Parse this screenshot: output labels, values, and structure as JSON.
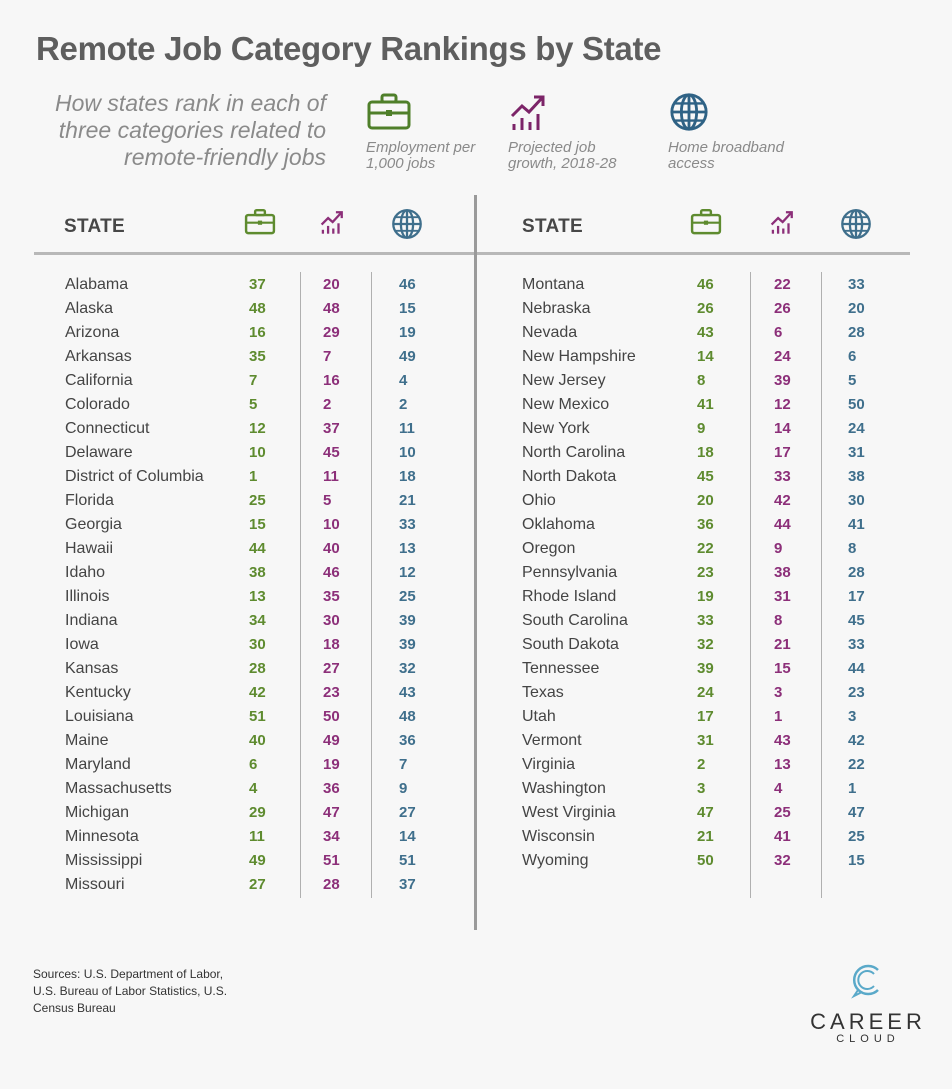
{
  "title": "Remote Job Category Rankings by State",
  "subtitle": "How states rank in each of three categories related to remote-friendly jobs",
  "legend": [
    {
      "icon": "briefcase-icon",
      "label": "Employment per 1,000 jobs",
      "color": "#4f7f2a"
    },
    {
      "icon": "growth-chart-icon",
      "label": "Projected job growth, 2018-28",
      "color": "#7c2468"
    },
    {
      "icon": "globe-icon",
      "label": "Home broadband access",
      "color": "#2f6285"
    }
  ],
  "header": {
    "state_label": "STATE"
  },
  "sources": "Sources: U.S. Department of Labor, U.S. Bureau of Labor Statistics, U.S. Census Bureau",
  "logo": {
    "line1": "CAREER",
    "line2": "CLOUD"
  },
  "chart_data": {
    "type": "table",
    "columns": [
      "STATE",
      "Employment per 1,000 jobs",
      "Projected job growth, 2018-28",
      "Home broadband access"
    ],
    "left_rows": [
      [
        "Alabama",
        37,
        20,
        46
      ],
      [
        "Alaska",
        48,
        48,
        15
      ],
      [
        "Arizona",
        16,
        29,
        19
      ],
      [
        "Arkansas",
        35,
        7,
        49
      ],
      [
        "California",
        7,
        16,
        4
      ],
      [
        "Colorado",
        5,
        2,
        2
      ],
      [
        "Connecticut",
        12,
        37,
        11
      ],
      [
        "Delaware",
        10,
        45,
        10
      ],
      [
        "District of Columbia",
        1,
        11,
        18
      ],
      [
        "Florida",
        25,
        5,
        21
      ],
      [
        "Georgia",
        15,
        10,
        33
      ],
      [
        "Hawaii",
        44,
        40,
        13
      ],
      [
        "Idaho",
        38,
        46,
        12
      ],
      [
        "Illinois",
        13,
        35,
        25
      ],
      [
        "Indiana",
        34,
        30,
        39
      ],
      [
        "Iowa",
        30,
        18,
        39
      ],
      [
        "Kansas",
        28,
        27,
        32
      ],
      [
        "Kentucky",
        42,
        23,
        43
      ],
      [
        "Louisiana",
        51,
        50,
        48
      ],
      [
        "Maine",
        40,
        49,
        36
      ],
      [
        "Maryland",
        6,
        19,
        7
      ],
      [
        "Massachusetts",
        4,
        36,
        9
      ],
      [
        "Michigan",
        29,
        47,
        27
      ],
      [
        "Minnesota",
        11,
        34,
        14
      ],
      [
        "Mississippi",
        49,
        51,
        51
      ],
      [
        "Missouri",
        27,
        28,
        37
      ]
    ],
    "right_rows": [
      [
        "Montana",
        46,
        22,
        33
      ],
      [
        "Nebraska",
        26,
        26,
        20
      ],
      [
        "Nevada",
        43,
        6,
        28
      ],
      [
        "New Hampshire",
        14,
        24,
        6
      ],
      [
        "New Jersey",
        8,
        39,
        5
      ],
      [
        "New Mexico",
        41,
        12,
        50
      ],
      [
        "New York",
        9,
        14,
        24
      ],
      [
        "North Carolina",
        18,
        17,
        31
      ],
      [
        "North Dakota",
        45,
        33,
        38
      ],
      [
        "Ohio",
        20,
        42,
        30
      ],
      [
        "Oklahoma",
        36,
        44,
        41
      ],
      [
        "Oregon",
        22,
        9,
        8
      ],
      [
        "Pennsylvania",
        23,
        38,
        28
      ],
      [
        "Rhode Island",
        19,
        31,
        17
      ],
      [
        "South Carolina",
        33,
        8,
        45
      ],
      [
        "South Dakota",
        32,
        21,
        33
      ],
      [
        "Tennessee",
        39,
        15,
        44
      ],
      [
        "Texas",
        24,
        3,
        23
      ],
      [
        "Utah",
        17,
        1,
        3
      ],
      [
        "Vermont",
        31,
        43,
        42
      ],
      [
        "Virginia",
        2,
        13,
        22
      ],
      [
        "Washington",
        3,
        4,
        1
      ],
      [
        "West Virginia",
        47,
        25,
        47
      ],
      [
        "Wisconsin",
        21,
        41,
        25
      ],
      [
        "Wyoming",
        50,
        32,
        15
      ]
    ]
  }
}
